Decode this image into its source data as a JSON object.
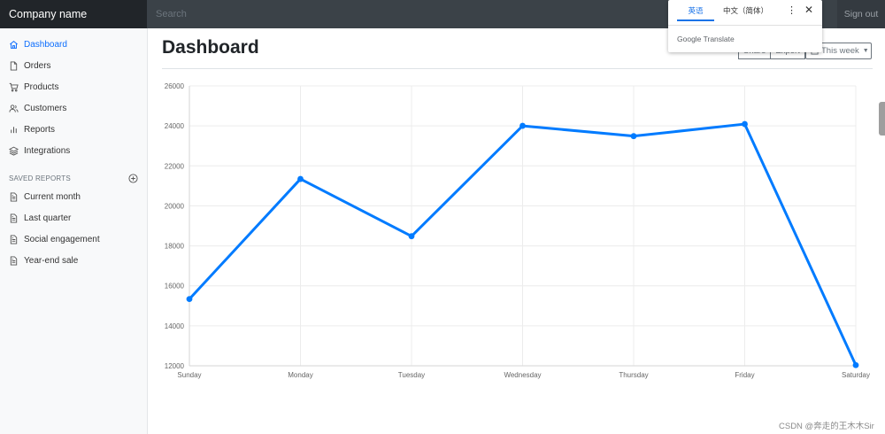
{
  "header": {
    "brand": "Company name",
    "search_placeholder": "Search",
    "sign_out": "Sign out"
  },
  "sidebar": {
    "items": [
      {
        "label": "Dashboard",
        "icon": "home-icon",
        "active": true
      },
      {
        "label": "Orders",
        "icon": "file-icon",
        "active": false
      },
      {
        "label": "Products",
        "icon": "cart-icon",
        "active": false
      },
      {
        "label": "Customers",
        "icon": "users-icon",
        "active": false
      },
      {
        "label": "Reports",
        "icon": "bar-chart-icon",
        "active": false
      },
      {
        "label": "Integrations",
        "icon": "layers-icon",
        "active": false
      }
    ],
    "saved_reports_heading": "SAVED REPORTS",
    "saved_reports": [
      {
        "label": "Current month",
        "icon": "file-text-icon"
      },
      {
        "label": "Last quarter",
        "icon": "file-text-icon"
      },
      {
        "label": "Social engagement",
        "icon": "file-text-icon"
      },
      {
        "label": "Year-end sale",
        "icon": "file-text-icon"
      }
    ]
  },
  "main": {
    "title": "Dashboard",
    "share_label": "Share",
    "export_label": "Export",
    "week_label": "This week"
  },
  "translate_popup": {
    "source_lang": "英语",
    "target_lang": "中文（简体）",
    "more": "⋮",
    "close": "✕",
    "branding": "Google Translate"
  },
  "watermark": "CSDN @奔走的王木木Sir",
  "colors": {
    "accent": "#0d6efd",
    "line": "#007bff",
    "topbar": "#343a40",
    "brand_bg": "#212529"
  },
  "chart_data": {
    "type": "line",
    "categories": [
      "Sunday",
      "Monday",
      "Tuesday",
      "Wednesday",
      "Thursday",
      "Friday",
      "Saturday"
    ],
    "series": [
      {
        "values": [
          15339,
          21345,
          18483,
          24003,
          23489,
          24092,
          12034
        ]
      }
    ],
    "yticks": [
      12000,
      14000,
      16000,
      18000,
      20000,
      22000,
      24000,
      26000
    ],
    "ylim": [
      12000,
      26000
    ],
    "grid": true,
    "legend": false
  }
}
